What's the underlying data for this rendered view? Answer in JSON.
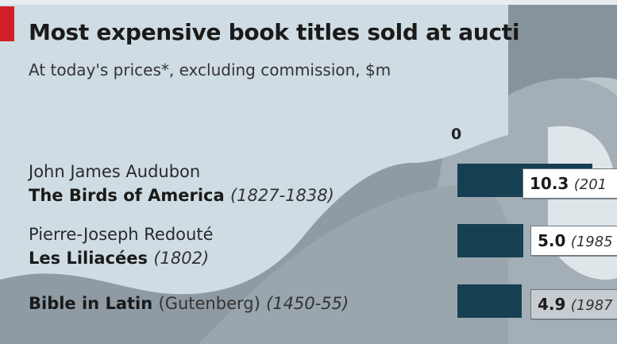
{
  "header": {
    "title": "Most expensive book titles sold at aucti",
    "subtitle": "At today's prices*, excluding commission, $m",
    "zero_label": "0"
  },
  "colors": {
    "bar": "#173f52",
    "background": "#8f9ba4",
    "panel": "#cfdce3"
  },
  "chart_data": {
    "type": "bar",
    "orientation": "horizontal",
    "title": "Most expensive book titles sold at aucti",
    "subtitle": "At today's prices*, excluding commission, $m",
    "categories": [
      "John James Audubon The Birds of America (1827-1838)",
      "Pierre-Joseph Redouté Les Liliacées (1802)",
      "Bible in Latin (Gutenberg) (1450-55)"
    ],
    "values": [
      10.3,
      5.0,
      4.9
    ],
    "value_labels": [
      "10.3",
      "5.0",
      "4.9"
    ],
    "sale_year_labels": [
      "(201",
      "(1985",
      "(1987"
    ],
    "axis_tick_labels": [
      "0"
    ]
  },
  "rows": [
    {
      "author": "John James Audubon",
      "book": "The Birds of America",
      "years": "(1827-1838)",
      "value": "10.3",
      "sale_year": "(201"
    },
    {
      "author": "Pierre-Joseph Redouté",
      "book": "Les Liliacées",
      "years": "(1802)",
      "value": "5.0",
      "sale_year": "(1985"
    },
    {
      "book": "Bible in Latin",
      "note": "(Gutenberg)",
      "years": "(1450-55)",
      "value": "4.9",
      "sale_year": "(1987"
    }
  ]
}
